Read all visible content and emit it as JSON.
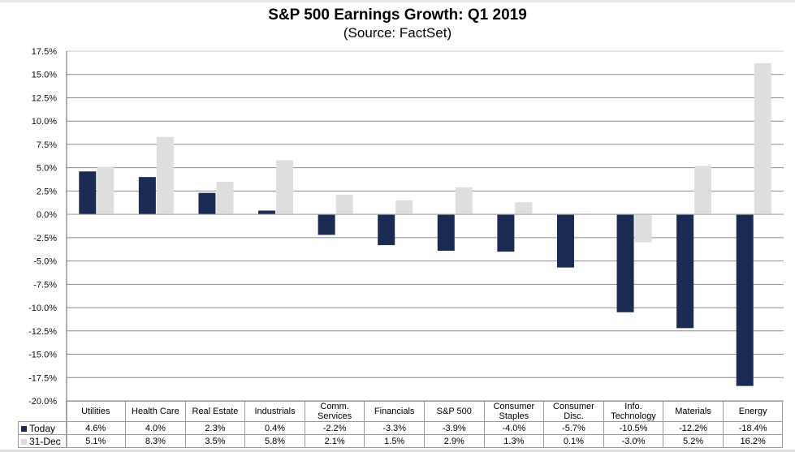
{
  "chart_data": {
    "type": "bar",
    "title": "S&P 500 Earnings Growth: Q1 2019",
    "subtitle": "(Source: FactSet)",
    "xlabel": "",
    "ylabel": "",
    "ylim": [
      -20.0,
      17.5
    ],
    "ytick_step": 2.5,
    "yticks": [
      "17.5%",
      "15.0%",
      "12.5%",
      "10.0%",
      "7.5%",
      "5.0%",
      "2.5%",
      "0.0%",
      "-2.5%",
      "-5.0%",
      "-7.5%",
      "-10.0%",
      "-12.5%",
      "-15.0%",
      "-17.5%",
      "-20.0%"
    ],
    "grid": true,
    "legend_placement": "data-table-left",
    "categories": [
      "Utilities",
      "Health Care",
      "Real Estate",
      "Industrials",
      "Comm. Services",
      "Financials",
      "S&P 500",
      "Consumer Staples",
      "Consumer Disc.",
      "Info. Technology",
      "Materials",
      "Energy"
    ],
    "category_lines": [
      [
        "Utilities"
      ],
      [
        "Health Care"
      ],
      [
        "Real Estate"
      ],
      [
        "Industrials"
      ],
      [
        "Comm.",
        "Services"
      ],
      [
        "Financials"
      ],
      [
        "S&P 500"
      ],
      [
        "Consumer",
        "Staples"
      ],
      [
        "Consumer",
        "Disc."
      ],
      [
        "Info.",
        "Technology"
      ],
      [
        "Materials"
      ],
      [
        "Energy"
      ]
    ],
    "series": [
      {
        "name": "Today",
        "color": "#1b2a52",
        "values": [
          4.6,
          4.0,
          2.3,
          0.4,
          -2.2,
          -3.3,
          -3.9,
          -4.0,
          -5.7,
          -10.5,
          -12.2,
          -18.4
        ],
        "labels": [
          "4.6%",
          "4.0%",
          "2.3%",
          "0.4%",
          "-2.2%",
          "-3.3%",
          "-3.9%",
          "-4.0%",
          "-5.7%",
          "-10.5%",
          "-12.2%",
          "-18.4%"
        ]
      },
      {
        "name": "31-Dec",
        "color": "#dedede",
        "values": [
          5.1,
          8.3,
          3.5,
          5.8,
          2.1,
          1.5,
          2.9,
          1.3,
          0.1,
          -3.0,
          5.2,
          16.2
        ],
        "labels": [
          "5.1%",
          "8.3%",
          "3.5%",
          "5.8%",
          "2.1%",
          "1.5%",
          "2.9%",
          "1.3%",
          "0.1%",
          "-3.0%",
          "5.2%",
          "16.2%"
        ]
      }
    ]
  }
}
